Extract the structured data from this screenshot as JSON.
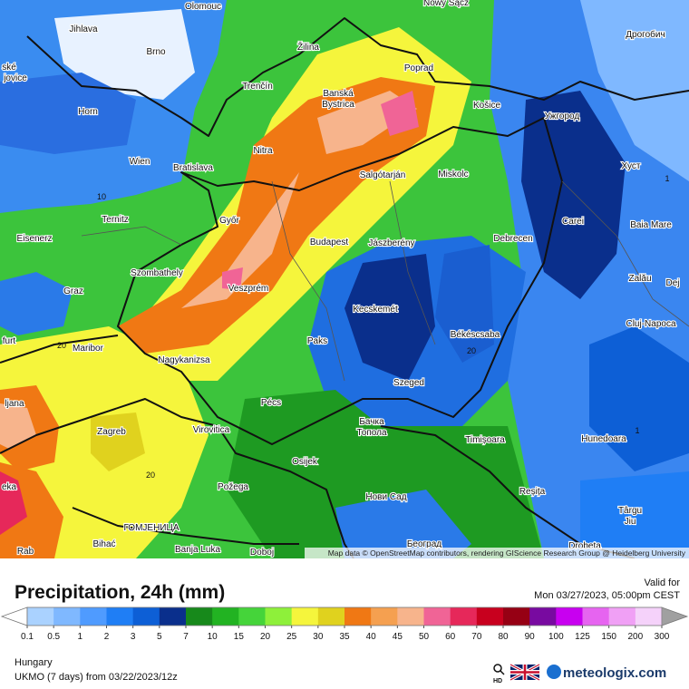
{
  "map": {
    "cities": [
      "Olomouc",
      "Nowy Sącz",
      "Jihlava",
      "Brno",
      "Žilina",
      "Poprad",
      "Дрогобич",
      "Trenčín",
      "Banská",
      "Bystrica",
      "Košice",
      "Ужгород",
      "Horn",
      "Nitra",
      "Wien",
      "Bratislava",
      "Salgótarján",
      "Miskolc",
      "Хуст",
      "Ternitz",
      "Győr",
      "Carei",
      "Baia Mare",
      "Eisenerz",
      "Budapest",
      "Jászberény",
      "Debrecen",
      "Szombathely",
      "Zalău",
      "Graz",
      "Veszprém",
      "Dej",
      "Kecskemét",
      "Cluj-Napoca",
      "Maribor",
      "Paks",
      "Békéscsaba",
      "Nagykanizsa",
      "Szeged",
      "Pécs",
      "ljana",
      "Zagreb",
      "Virovitica",
      "Бачка",
      "Топола",
      "Timișoara",
      "Hunedoara",
      "Osijek",
      "Požega",
      "Нови Сад",
      "Reșița",
      "Târgu",
      "Jiu",
      "ГОМЈЕНИЦА",
      "Bihać",
      "Banja Luka",
      "Doboj",
      "Београд",
      "Drobeta",
      "Rab",
      "eka",
      "furt",
      "ské",
      "jovice"
    ],
    "isolines": [
      "10",
      "20",
      "20",
      "20",
      "1",
      "1"
    ],
    "attribution": "Map data © OpenStreetMap contributors, rendering GIScience Research Group @ Heidelberg University"
  },
  "footer": {
    "title": "Precipitation, 24h (mm)",
    "valid_label": "Valid for",
    "valid_time": "Mon 03/27/2023, 05:00pm CEST",
    "region": "Hungary",
    "model": "UKMO (7 days) from 03/22/2023/12z",
    "resolution": "HD",
    "brand": "meteologix.com"
  },
  "colorbar": {
    "labels": [
      0.1,
      0.5,
      1,
      2,
      3,
      5,
      7,
      10,
      15,
      20,
      25,
      30,
      35,
      40,
      45,
      50,
      60,
      70,
      80,
      90,
      100,
      125,
      150,
      200,
      300
    ],
    "colors": [
      "#aad2ff",
      "#7fb8ff",
      "#4f9bff",
      "#1f7ef5",
      "#0d5fd6",
      "#0a2f8c",
      "#17891b",
      "#22b322",
      "#45d43a",
      "#8ef03a",
      "#f5f53c",
      "#e0d21e",
      "#f07814",
      "#f5a050",
      "#f7b48c",
      "#f06496",
      "#e6285a",
      "#c8001e",
      "#960014",
      "#780aa0",
      "#c800f0",
      "#e664f0",
      "#f0a0f5",
      "#f5d2fa"
    ],
    "under_color": "#ffffff",
    "over_color": "#a0a0a0"
  }
}
